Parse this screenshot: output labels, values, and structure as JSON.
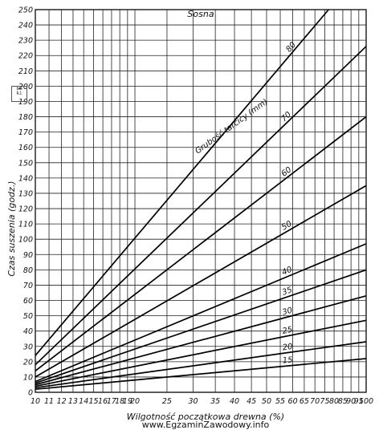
{
  "chart_data": {
    "type": "line",
    "title": "Sosna",
    "xlabel": "Wilgotność początkowa drewna (%)",
    "ylabel": "Czas suszenia (godz.)",
    "series_label_title": "Grubość tarcicy (mm)",
    "x_scale": "log",
    "xlim": [
      10,
      100
    ],
    "ylim": [
      0,
      250
    ],
    "grid": true,
    "x_ticks": [
      10,
      11,
      12,
      13,
      14,
      15,
      16,
      17,
      18,
      19,
      20,
      25,
      30,
      35,
      40,
      45,
      50,
      55,
      60,
      65,
      70,
      75,
      80,
      85,
      90,
      95,
      100
    ],
    "x_tick_labels": [
      "10",
      "11",
      "12",
      "13",
      "14",
      "15",
      "16",
      "17",
      "18",
      "19",
      "20",
      "25",
      "30",
      "35",
      "40",
      "45",
      "50",
      "55",
      "60",
      "65",
      "70",
      "75",
      "80",
      "85",
      "90",
      "95",
      "100"
    ],
    "y_ticks": [
      0,
      10,
      20,
      30,
      40,
      50,
      60,
      70,
      80,
      90,
      100,
      110,
      120,
      130,
      140,
      150,
      160,
      170,
      180,
      190,
      200,
      210,
      220,
      230,
      240,
      250
    ],
    "y_tick_labels": [
      "0",
      "10",
      "20",
      "30",
      "40",
      "50",
      "60",
      "70",
      "80",
      "90",
      "100",
      "110",
      "120",
      "130",
      "140",
      "150",
      "160",
      "170",
      "180",
      "190",
      "200",
      "210",
      "220",
      "230",
      "240",
      "250"
    ],
    "series": [
      {
        "name": "15",
        "x": [
          10,
          100
        ],
        "y": [
          2,
          22
        ]
      },
      {
        "name": "20",
        "x": [
          10,
          100
        ],
        "y": [
          3,
          33
        ]
      },
      {
        "name": "25",
        "x": [
          10,
          100
        ],
        "y": [
          4,
          47
        ]
      },
      {
        "name": "30",
        "x": [
          10,
          100
        ],
        "y": [
          5,
          63
        ]
      },
      {
        "name": "35",
        "x": [
          10,
          100
        ],
        "y": [
          6,
          80
        ]
      },
      {
        "name": "40",
        "x": [
          10,
          100
        ],
        "y": [
          7,
          97
        ]
      },
      {
        "name": "50",
        "x": [
          10,
          100
        ],
        "y": [
          10,
          135
        ]
      },
      {
        "name": "60",
        "x": [
          10,
          100
        ],
        "y": [
          14,
          180
        ]
      },
      {
        "name": "70",
        "x": [
          10,
          100
        ],
        "y": [
          18,
          226
        ]
      },
      {
        "name": "80",
        "x": [
          10,
          77
        ],
        "y": [
          24,
          250
        ]
      }
    ]
  },
  "stamp_text": "EZ ki",
  "watermark": "www.EgzaminZawodowy.info"
}
